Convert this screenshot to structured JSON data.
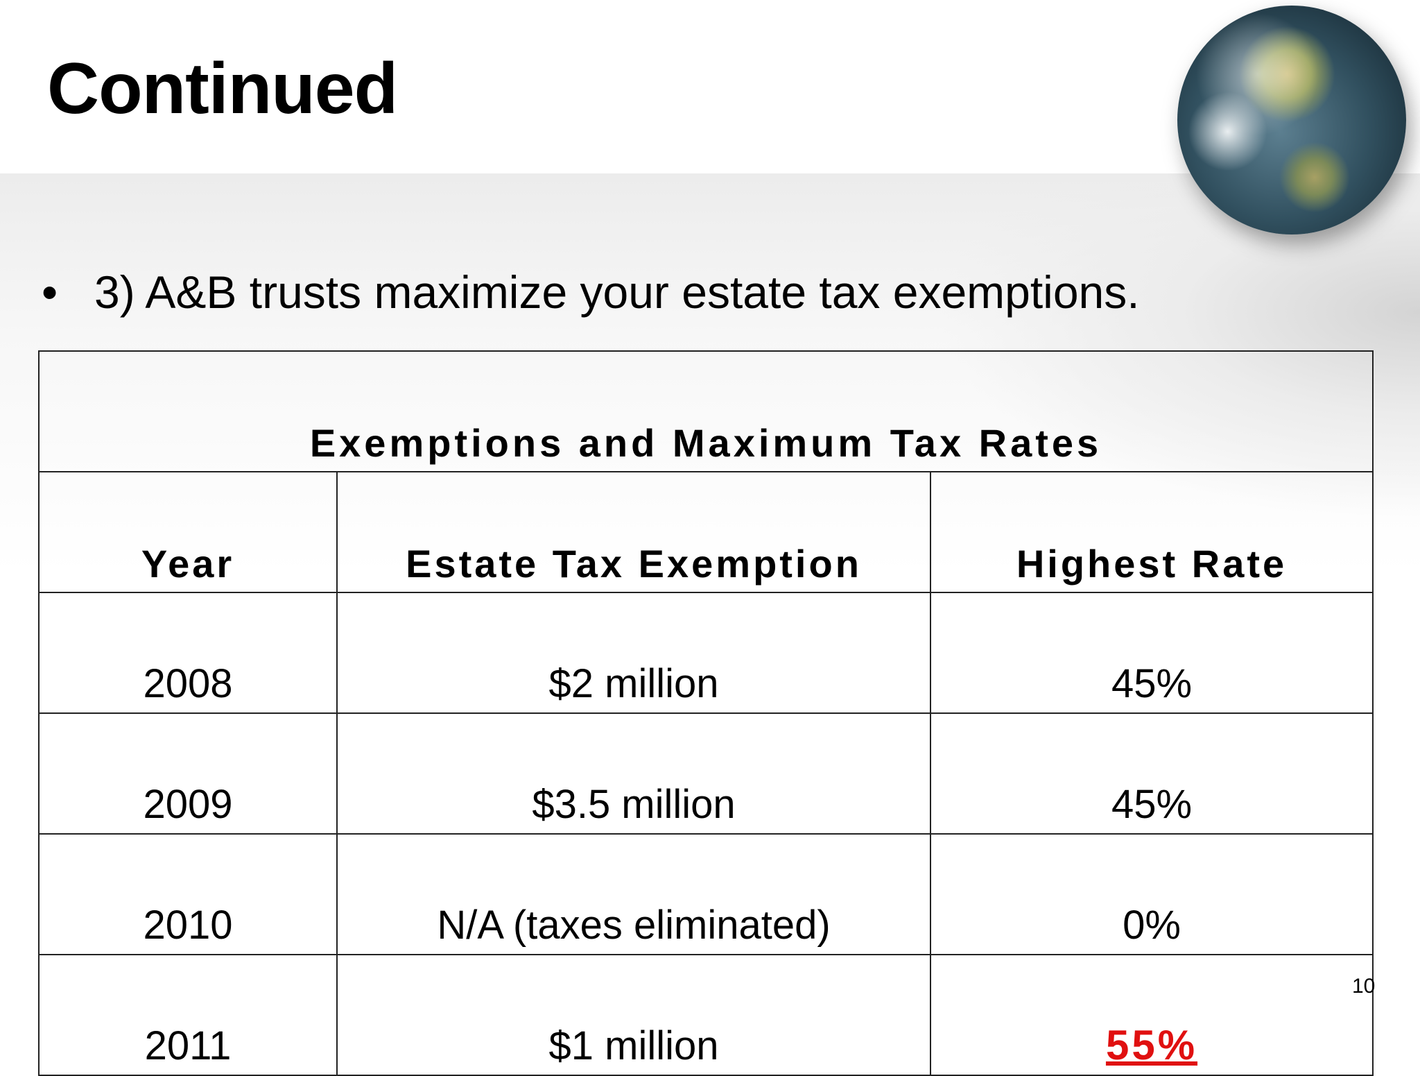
{
  "slide": {
    "title": "Continued",
    "bullet_marker": "•",
    "bullet_text": "3) A&B trusts maximize your estate tax exemptions.",
    "page_number": "10"
  },
  "table": {
    "title": "Exemptions and Maximum Tax Rates",
    "headers": [
      "Year",
      "Estate Tax Exemption",
      "Highest Rate"
    ],
    "rows": [
      [
        "2008",
        "$2 million",
        "45%"
      ],
      [
        "2009",
        "$3.5 million",
        "45%"
      ],
      [
        "2010",
        "N/A (taxes eliminated)",
        "0%"
      ],
      [
        "2011",
        "$1 million",
        "55%"
      ]
    ]
  },
  "colors": {
    "highlight": "#e01010"
  },
  "icons": {
    "globe": "globe-icon"
  }
}
